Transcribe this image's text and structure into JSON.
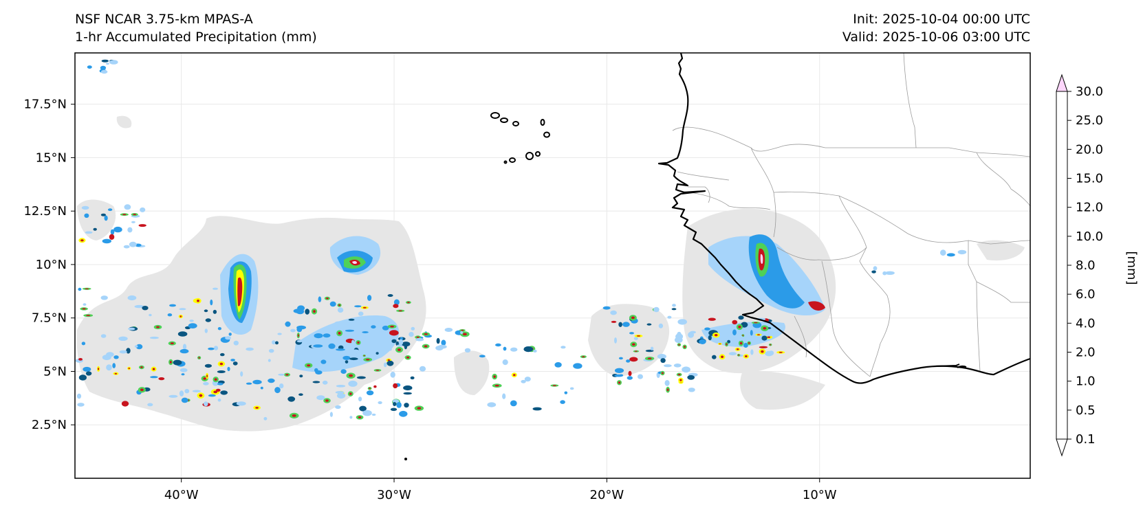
{
  "header": {
    "model": "NSF NCAR 3.75-km MPAS-A",
    "field": "1-hr Accumulated Precipitation (mm)",
    "init": "Init: 2025-10-04 00:00 UTC",
    "valid": "Valid: 2025-10-06 03:00 UTC"
  },
  "map": {
    "lon_range": [
      -45,
      -0.1
    ],
    "lat_range": [
      0,
      19.9
    ],
    "lon_ticks": [
      {
        "value": -40,
        "label": "40°W"
      },
      {
        "value": -30,
        "label": "30°W"
      },
      {
        "value": -20,
        "label": "20°W"
      },
      {
        "value": -10,
        "label": "10°W"
      }
    ],
    "lat_ticks": [
      {
        "value": 2.5,
        "label": "2.5°N"
      },
      {
        "value": 5,
        "label": "5°N"
      },
      {
        "value": 7.5,
        "label": "7.5°N"
      },
      {
        "value": 10,
        "label": "10°N"
      },
      {
        "value": 12.5,
        "label": "12.5°N"
      },
      {
        "value": 15,
        "label": "15°N"
      },
      {
        "value": 17.5,
        "label": "17.5°N"
      }
    ],
    "coastline_color": "#000000",
    "border_color": "#9a9a9a"
  },
  "colorbar": {
    "label": "[mm]",
    "levels": [
      "0.1",
      "0.5",
      "1.0",
      "2.0",
      "4.0",
      "6.0",
      "8.0",
      "10.0",
      "12.0",
      "15.0",
      "20.0",
      "25.0",
      "30.0"
    ],
    "colors": [
      "#e6e6e6",
      "#a6d4fa",
      "#2b9be8",
      "#0a5580",
      "#4fd157",
      "#ffff00",
      "#f7bd3f",
      "#ef8e25",
      "#c8141e",
      "#8b0606",
      "#b93ab4",
      "#fdd6fb"
    ]
  }
}
